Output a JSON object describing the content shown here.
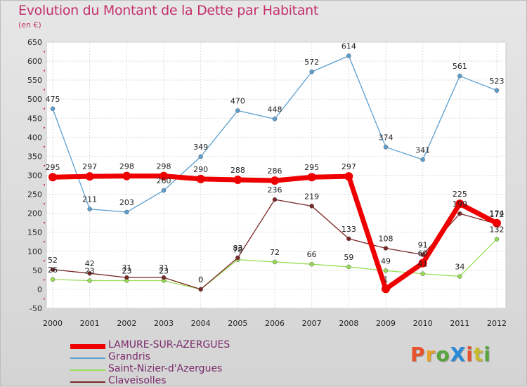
{
  "title": "Evolution du Montant de la Dette par Habitant",
  "subtitle": "(en €)",
  "logo": "ProXiti",
  "colors": {
    "LAMURE-SUR-AZERGUES": "#ee0000",
    "Grandris": "#5b9fd0",
    "Saint-Nizier-d'Azergues": "#99dd55",
    "Claveisolles": "#7a2626"
  },
  "chart_data": {
    "type": "line",
    "title": "Evolution du Montant de la Dette par Habitant",
    "ylabel": "(en €)",
    "xlabel": "",
    "ylim": [
      -50,
      650
    ],
    "y_ticks": [
      -50,
      0,
      50,
      100,
      150,
      200,
      250,
      300,
      350,
      400,
      450,
      500,
      550,
      600,
      650
    ],
    "x": [
      "2000",
      "2001",
      "2002",
      "2003",
      "2004",
      "2005",
      "2006",
      "2007",
      "2008",
      "2009",
      "2010",
      "2011",
      "2012"
    ],
    "grid": true,
    "legend_position": "bottom-left",
    "series": [
      {
        "name": "LAMURE-SUR-AZERGUES",
        "values": [
          295,
          297,
          298,
          298,
          290,
          288,
          286,
          295,
          297,
          1,
          69,
          225,
          174
        ]
      },
      {
        "name": "Grandris",
        "values": [
          475,
          211,
          203,
          260,
          349,
          470,
          448,
          572,
          614,
          374,
          341,
          561,
          523
        ]
      },
      {
        "name": "Saint-Nizier-d'Azergues",
        "values": [
          26,
          23,
          23,
          23,
          0,
          78,
          72,
          66,
          59,
          49,
          41,
          34,
          132
        ]
      },
      {
        "name": "Claveisolles",
        "values": [
          52,
          42,
          31,
          31,
          0,
          83,
          236,
          219,
          133,
          108,
          91,
          199,
          172
        ]
      }
    ]
  }
}
